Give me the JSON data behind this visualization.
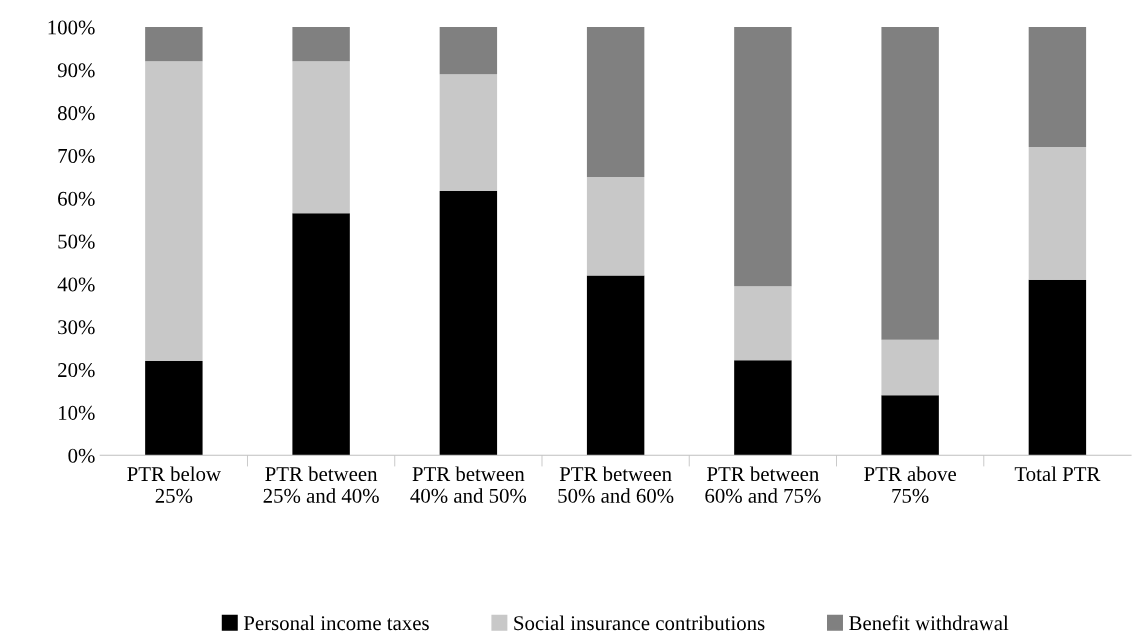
{
  "chart_data": {
    "type": "bar",
    "stacked": true,
    "categories": [
      "PTR below 25%",
      "PTR between 25% and 40%",
      "PTR between 40% and 50%",
      "PTR between 50% and 60%",
      "PTR between 60% and 75%",
      "PTR above 75%",
      "Total PTR"
    ],
    "series": [
      {
        "name": "Personal income taxes",
        "color": "#000000",
        "values": [
          22,
          56.5,
          61.7,
          42,
          22.2,
          14,
          41
        ]
      },
      {
        "name": "Social insurance contributions",
        "color": "#c8c8c8",
        "values": [
          70,
          35.5,
          27.3,
          23,
          17.3,
          13,
          31
        ]
      },
      {
        "name": "Benefit withdrawal",
        "color": "#808080",
        "values": [
          8,
          8,
          11,
          35,
          60.5,
          73,
          28
        ]
      }
    ],
    "ylim": [
      0,
      100
    ],
    "yticks": [
      {
        "value": 0,
        "label": "0%"
      },
      {
        "value": 10,
        "label": "10%"
      },
      {
        "value": 20,
        "label": "20%"
      },
      {
        "value": 30,
        "label": "30%"
      },
      {
        "value": 40,
        "label": "40%"
      },
      {
        "value": 50,
        "label": "50%"
      },
      {
        "value": 60,
        "label": "60%"
      },
      {
        "value": 70,
        "label": "70%"
      },
      {
        "value": 80,
        "label": "80%"
      },
      {
        "value": 90,
        "label": "90%"
      },
      {
        "value": 100,
        "label": "100%"
      }
    ],
    "grid": false,
    "legend": "bottom"
  }
}
